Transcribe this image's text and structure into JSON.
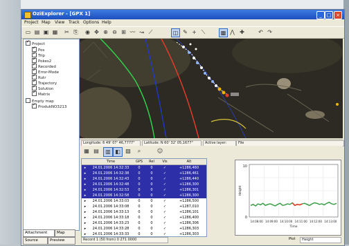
{
  "window": {
    "title": "OziExplorer - [GPX 1]"
  },
  "menu": [
    "Project",
    "Map",
    "View",
    "Track",
    "Options",
    "Help"
  ],
  "tree": [
    {
      "label": "Project",
      "checked": true,
      "level": 0
    },
    {
      "label": "Pos",
      "checked": true,
      "level": 1
    },
    {
      "label": "Trip",
      "checked": true,
      "level": 1
    },
    {
      "label": "Pokes2",
      "checked": true,
      "level": 1
    },
    {
      "label": "Recorded",
      "checked": true,
      "level": 1
    },
    {
      "label": "Error-Mode",
      "checked": true,
      "level": 1
    },
    {
      "label": "Rutr",
      "checked": true,
      "level": 1
    },
    {
      "label": "Trajectory",
      "checked": true,
      "level": 1
    },
    {
      "label": "Solution",
      "checked": true,
      "level": 1
    },
    {
      "label": "Matrix",
      "checked": true,
      "level": 1
    },
    {
      "label": "Empty map",
      "checked": false,
      "level": 0
    },
    {
      "label": "ProdukNO3213",
      "checked": true,
      "level": 1
    }
  ],
  "side_tabs": {
    "tab1": "Attachment",
    "tab2": "Map",
    "tab3": "Source",
    "tab4": "Preview"
  },
  "statusbar": {
    "longitude": "Longitude: 6 49' 07' 46,7777\"",
    "latitude": "Latitude: N 60' 32' 05,1677\"",
    "active_layer": "Active layer:",
    "file": "File"
  },
  "table": {
    "columns": [
      "",
      "Time",
      "GPS",
      "Rel",
      "Vis",
      "Alt"
    ],
    "rows": [
      {
        "time": "24.01.2006 14:32:33",
        "gps": "0",
        "rel": "0",
        "vis": "✓",
        "alt": "+1286,460",
        "selected": true
      },
      {
        "time": "24.01.2006 14:32:38",
        "gps": "0",
        "rel": "0",
        "vis": "✓",
        "alt": "+1286,461",
        "selected": true
      },
      {
        "time": "24.01.2006 14:32:43",
        "gps": "0",
        "rel": "0",
        "vis": "✓",
        "alt": "+1286,440",
        "selected": true
      },
      {
        "time": "24.01.2006 14:32:48",
        "gps": "0",
        "rel": "0",
        "vis": "✓",
        "alt": "+1286,300",
        "selected": true
      },
      {
        "time": "24.01.2006 14:32:53",
        "gps": "0",
        "rel": "0",
        "vis": "✓",
        "alt": "+1286,301",
        "selected": true
      },
      {
        "time": "24.01.2006 14:32:58",
        "gps": "0",
        "rel": "0",
        "vis": "✓",
        "alt": "+1286,300",
        "selected": true
      },
      {
        "time": "24.01.2006 14:33:03",
        "gps": "0",
        "rel": "0",
        "vis": "✓",
        "alt": "+1286,500",
        "selected": false
      },
      {
        "time": "24.01.2006 14:33:08",
        "gps": "0",
        "rel": "0",
        "vis": "✓",
        "alt": "+1287,010",
        "selected": false
      },
      {
        "time": "24.01.2006 14:33:13",
        "gps": "0",
        "rel": "0",
        "vis": "✓",
        "alt": "+1286,101",
        "selected": false
      },
      {
        "time": "24.01.2006 14:33:18",
        "gps": "0",
        "rel": "0",
        "vis": "✓",
        "alt": "+1286,400",
        "selected": false
      },
      {
        "time": "24.01.2006 14:33:23",
        "gps": "0",
        "rel": "0",
        "vis": "✓",
        "alt": "+1286,306",
        "selected": false
      },
      {
        "time": "24.01.2006 14:33:28",
        "gps": "0",
        "rel": "0",
        "vis": "✓",
        "alt": "+1286,303",
        "selected": false
      },
      {
        "time": "24.01.2006 14:33:33",
        "gps": "0",
        "rel": "0",
        "vis": "✓",
        "alt": "+1286,303",
        "selected": false
      }
    ]
  },
  "record_status": "Record 1 (50 from) 0 271 0000",
  "chart_data": {
    "type": "line",
    "ylabel": "Height",
    "xlabel": "Time",
    "yticks": [
      "10",
      "0"
    ],
    "xticks": [
      "14:08:00",
      "14:09:00",
      "14:10:00",
      "14:11:00",
      "14:12:00",
      "14:13:00"
    ],
    "ylim": [
      0,
      10
    ],
    "series": [
      {
        "values": [
          2.2,
          2.4,
          2.1,
          2.5,
          2.3,
          2.6,
          2.2,
          2.4,
          2.5,
          2.3,
          2.1,
          2.4,
          2.6,
          2.2,
          2.3,
          2.5,
          2.4,
          2.7,
          2.2,
          2.4,
          2.3,
          2.5,
          2.6,
          2.4,
          2.2,
          2.5,
          2.7,
          2.6,
          2.4,
          2.5,
          2.3,
          2.6,
          2.8,
          2.5,
          2.4,
          2.6
        ]
      }
    ],
    "highlight": {
      "from": 17,
      "to": 21
    }
  },
  "plot_selector": {
    "label": "Plot",
    "value": "Height"
  },
  "colors": {
    "selection": "#2c2fa8",
    "series": "#2e9a3c",
    "highlight": "#e33b2a"
  }
}
